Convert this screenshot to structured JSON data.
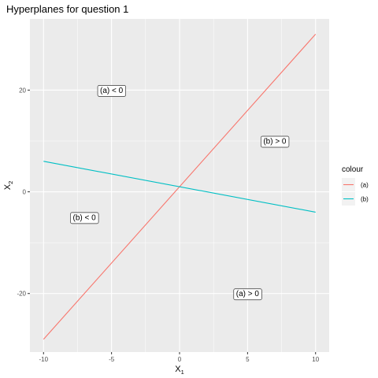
{
  "chart_data": {
    "type": "line",
    "title": "Hyperplanes for question 1",
    "xlabel": {
      "base": "X",
      "sub": "1"
    },
    "ylabel": {
      "base": "X",
      "sub": "2"
    },
    "xlim": [
      -11,
      11
    ],
    "ylim": [
      -31.5,
      34
    ],
    "xticks": [
      {
        "value": -10,
        "label": "-10"
      },
      {
        "value": -5,
        "label": "-5"
      },
      {
        "value": 0,
        "label": "0"
      },
      {
        "value": 5,
        "label": "5"
      },
      {
        "value": 10,
        "label": "10"
      }
    ],
    "yticks": [
      {
        "value": -20,
        "label": "-20"
      },
      {
        "value": 0,
        "label": "0"
      },
      {
        "value": 20,
        "label": "20"
      }
    ],
    "grid": true,
    "legend": {
      "title": "colour",
      "placement": "right"
    },
    "series": [
      {
        "name": "(a)",
        "color": "#F8766D",
        "x": [
          -10,
          10
        ],
        "y": [
          -29,
          31
        ]
      },
      {
        "name": "(b)",
        "color": "#00BFC4",
        "x": [
          -10,
          10
        ],
        "y": [
          6,
          -4
        ]
      }
    ],
    "annotations": [
      {
        "text": "(a) < 0",
        "x": -5,
        "y": 20
      },
      {
        "text": "(b) > 0",
        "x": 7,
        "y": 10
      },
      {
        "text": "(b) < 0",
        "x": -7,
        "y": -5
      },
      {
        "text": "(a) > 0",
        "x": 5,
        "y": -20
      }
    ]
  }
}
